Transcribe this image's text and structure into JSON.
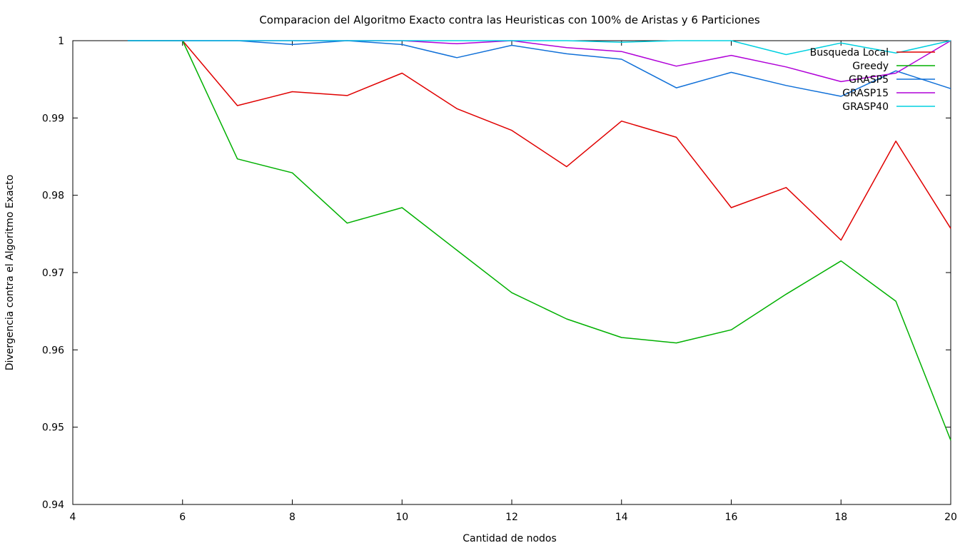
{
  "chart_data": {
    "type": "line",
    "title": "Comparacion del Algoritmo Exacto contra las Heuristicas con 100% de Aristas y 6 Particiones",
    "xlabel": "Cantidad de nodos",
    "ylabel": "Divergencia contra el Algoritmo Exacto",
    "xlim": [
      4,
      20
    ],
    "ylim": [
      0.94,
      1
    ],
    "xticks": [
      "4",
      "6",
      "8",
      "10",
      "12",
      "14",
      "16",
      "18",
      "20"
    ],
    "yticks": [
      "0.94",
      "0.95",
      "0.96",
      "0.97",
      "0.98",
      "0.99",
      "1"
    ],
    "grid": false,
    "legend_position": "top-right",
    "x": [
      5,
      6,
      7,
      8,
      9,
      10,
      11,
      12,
      13,
      14,
      15,
      16,
      17,
      18,
      19,
      20
    ],
    "series": [
      {
        "name": "Busqueda Local",
        "color": "#e00000",
        "values": [
          1,
          1,
          0.9916,
          0.9934,
          0.9929,
          0.9958,
          0.9912,
          0.9884,
          0.9837,
          0.9896,
          0.9875,
          0.9784,
          0.981,
          0.9742,
          0.987,
          0.9757
        ]
      },
      {
        "name": "Greedy",
        "color": "#00b000",
        "values": [
          1,
          1,
          0.9847,
          0.9829,
          0.9764,
          0.9784,
          0.9729,
          0.9674,
          0.964,
          0.9616,
          0.9609,
          0.9626,
          0.9672,
          0.9715,
          0.9663,
          0.9483
        ]
      },
      {
        "name": "GRASP5",
        "color": "#1070d8",
        "values": [
          1,
          1,
          1,
          0.9995,
          1,
          0.9995,
          0.9978,
          0.9994,
          0.9983,
          0.9976,
          0.9939,
          0.9959,
          0.9942,
          0.9928,
          0.9961,
          0.9938
        ]
      },
      {
        "name": "GRASP15",
        "color": "#b000d8",
        "values": [
          1,
          1,
          1,
          1,
          1,
          1,
          0.9996,
          1,
          0.9991,
          0.9986,
          0.9967,
          0.9981,
          0.9966,
          0.9947,
          0.9958,
          1
        ]
      },
      {
        "name": "GRASP40",
        "color": "#00d0e0",
        "values": [
          1,
          1,
          1,
          1,
          1,
          1,
          1,
          1,
          1,
          0.9998,
          1,
          1,
          0.9982,
          0.9997,
          0.9984,
          1
        ]
      }
    ]
  }
}
